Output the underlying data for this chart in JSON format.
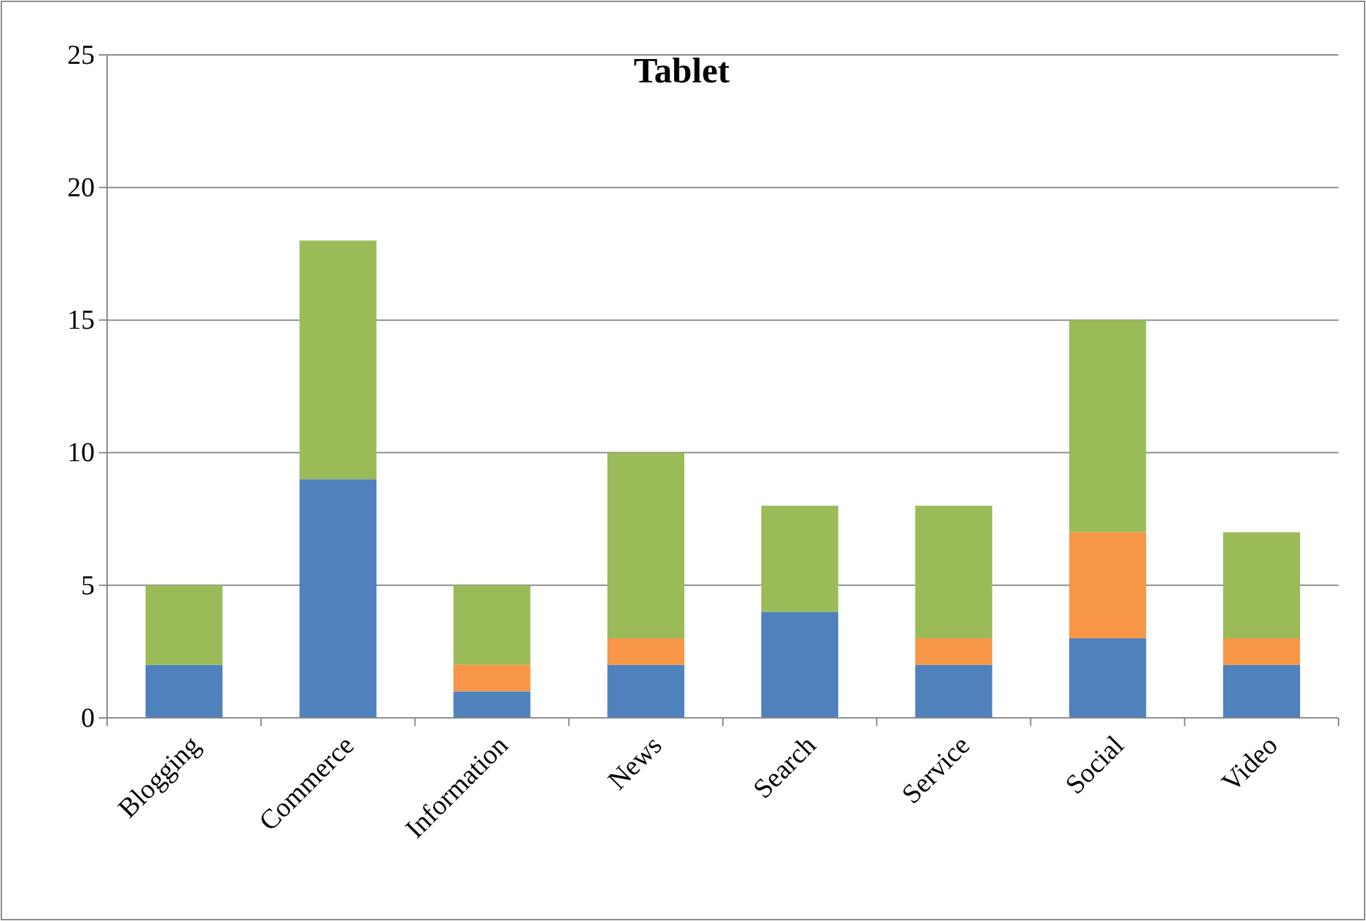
{
  "chart_data": {
    "type": "bar",
    "title": "Tablet",
    "stacked": true,
    "grid": "y",
    "categories": [
      "Blogging",
      "Commerce",
      "Information",
      "News",
      "Search",
      "Service",
      "Social",
      "Video"
    ],
    "series": [
      {
        "color": "#4f81bd",
        "values": [
          2,
          9,
          1,
          2,
          4,
          2,
          3,
          2
        ]
      },
      {
        "color": "#f79646",
        "values": [
          0,
          0,
          1,
          1,
          0,
          1,
          4,
          1
        ]
      },
      {
        "color": "#9bbb59",
        "values": [
          3,
          9,
          3,
          7,
          4,
          5,
          8,
          4
        ]
      }
    ],
    "ylim": [
      0,
      25
    ],
    "yticks": [
      0,
      5,
      10,
      15,
      20,
      25
    ]
  }
}
